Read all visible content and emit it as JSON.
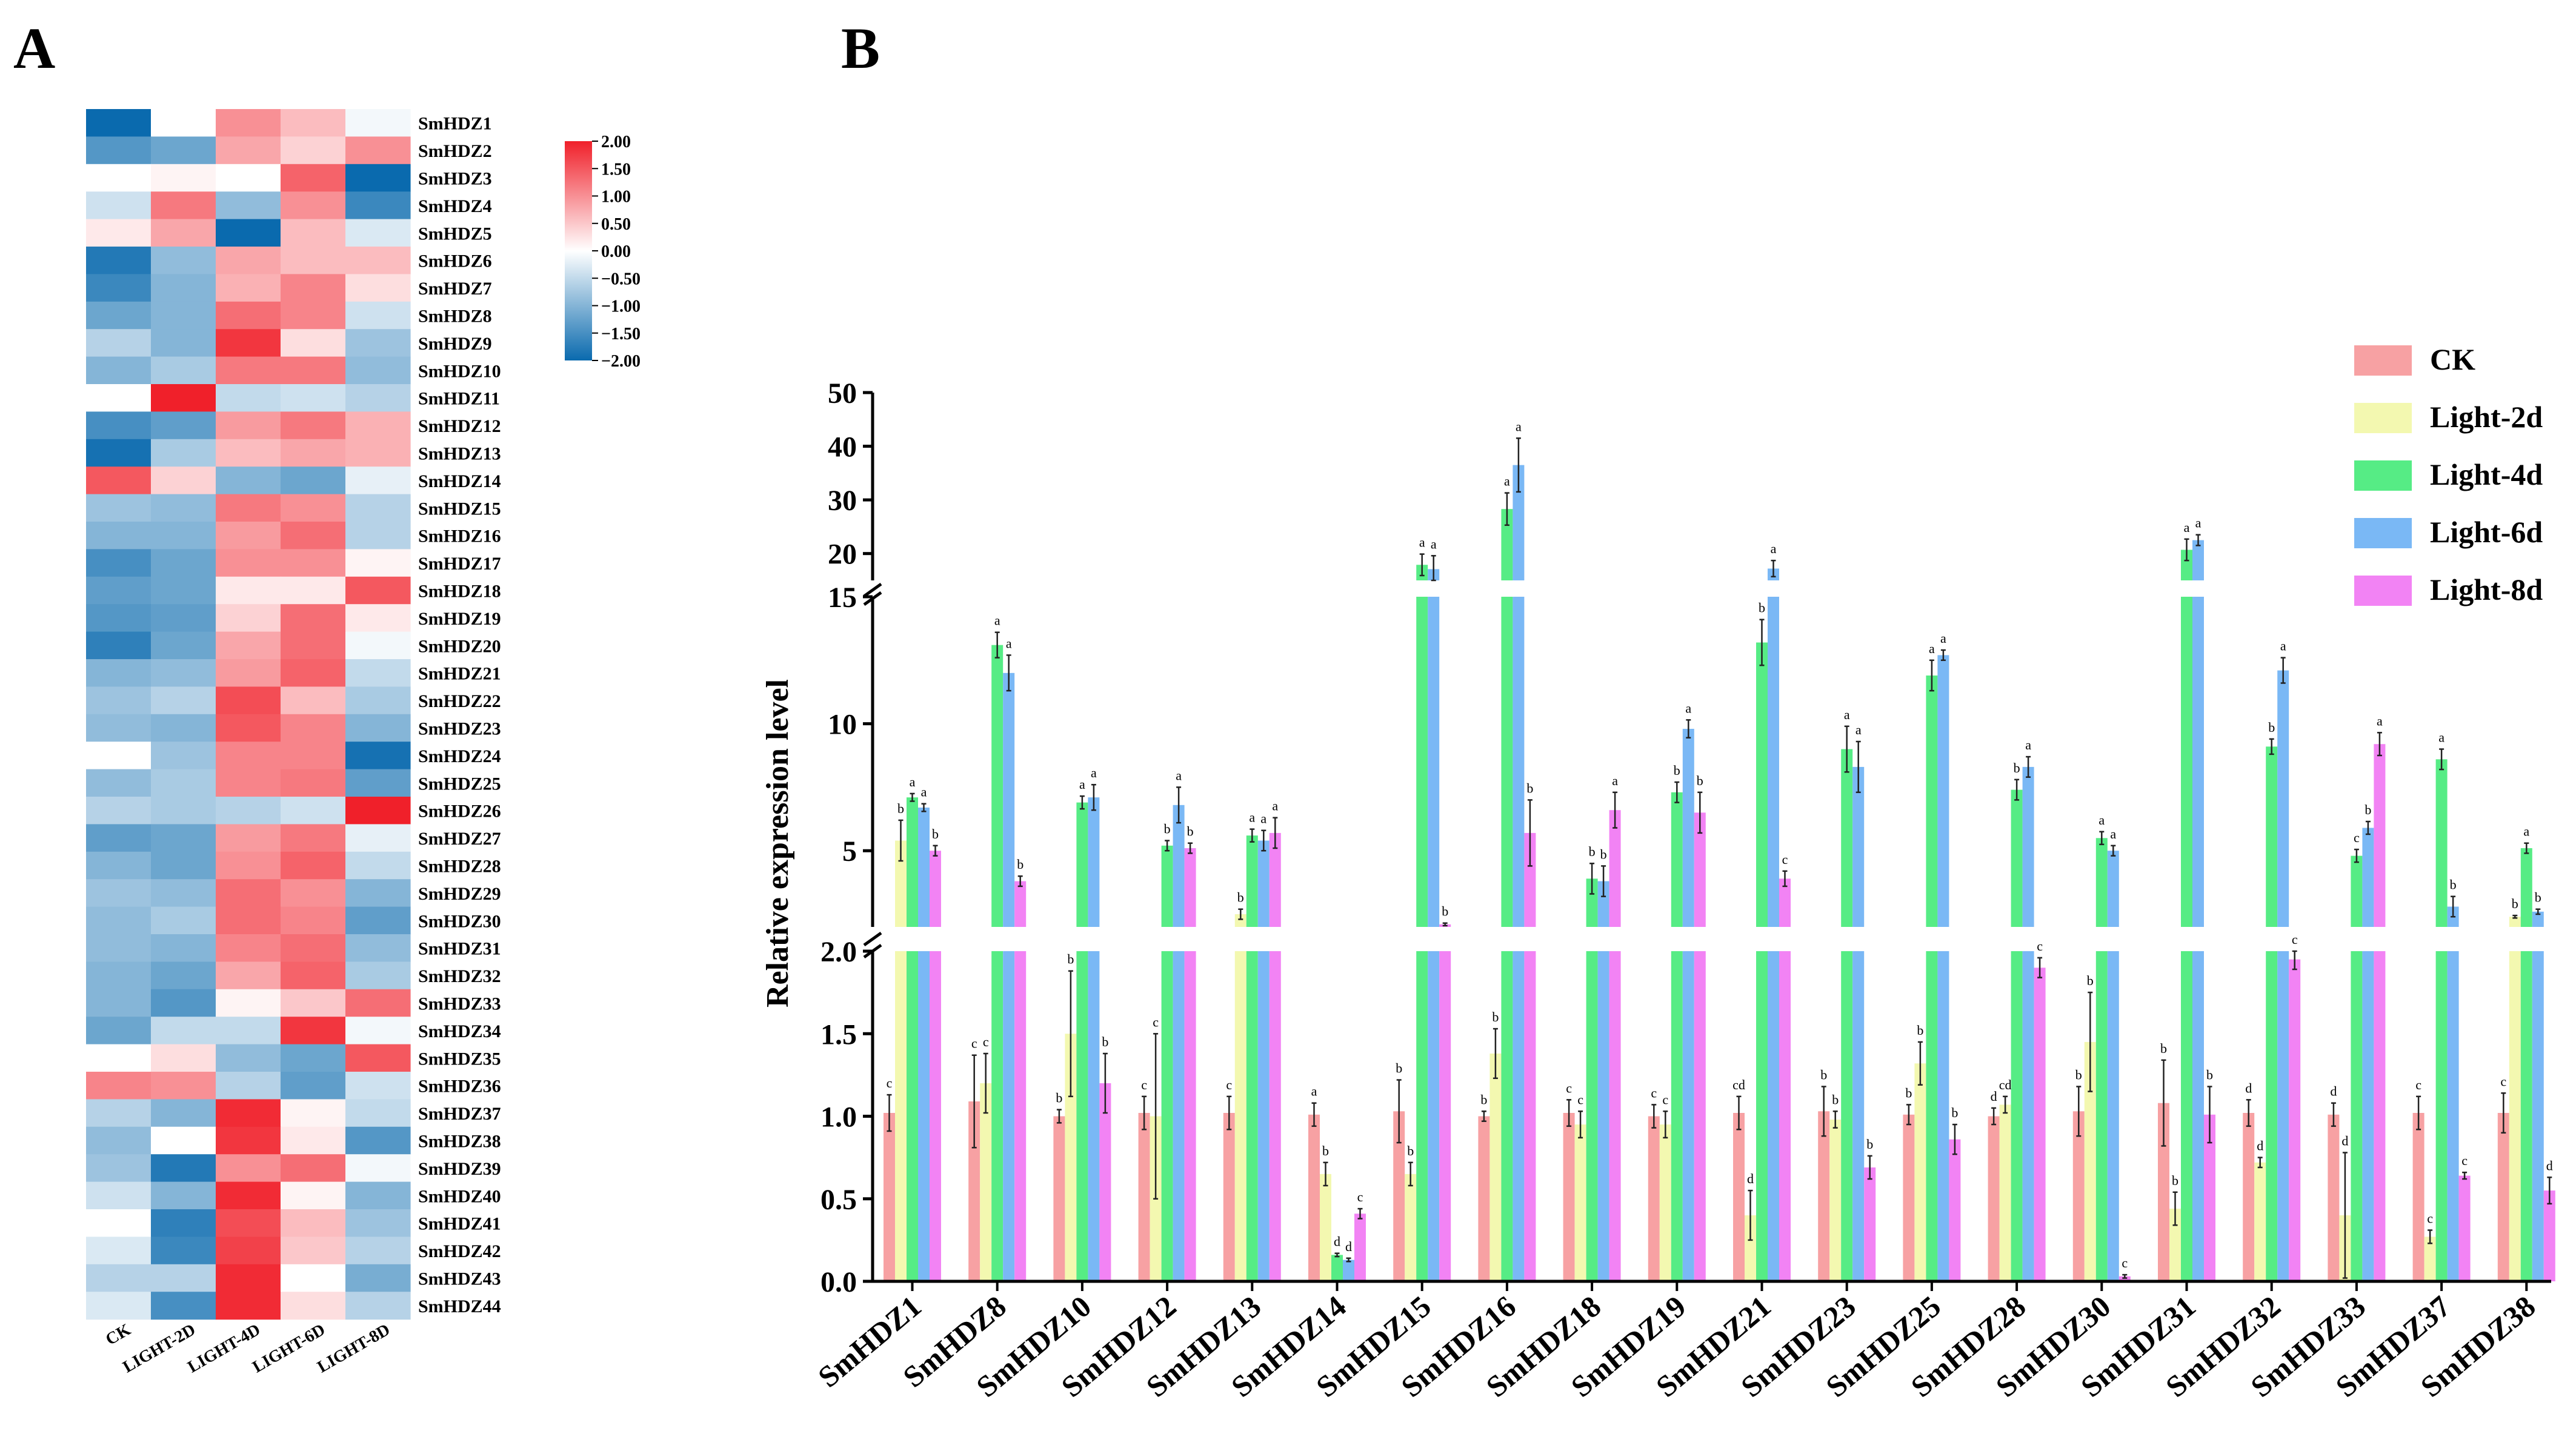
{
  "panels": {
    "a": "A",
    "b": "B"
  },
  "chart_data": [
    {
      "type": "heatmap",
      "panel": "A",
      "rows": [
        "SmHDZ1",
        "SmHDZ2",
        "SmHDZ3",
        "SmHDZ4",
        "SmHDZ5",
        "SmHDZ6",
        "SmHDZ7",
        "SmHDZ8",
        "SmHDZ9",
        "SmHDZ10",
        "SmHDZ11",
        "SmHDZ12",
        "SmHDZ13",
        "SmHDZ14",
        "SmHDZ15",
        "SmHDZ16",
        "SmHDZ17",
        "SmHDZ18",
        "SmHDZ19",
        "SmHDZ20",
        "SmHDZ21",
        "SmHDZ22",
        "SmHDZ23",
        "SmHDZ24",
        "SmHDZ25",
        "SmHDZ26",
        "SmHDZ27",
        "SmHDZ28",
        "SmHDZ29",
        "SmHDZ30",
        "SmHDZ31",
        "SmHDZ32",
        "SmHDZ33",
        "SmHDZ34",
        "SmHDZ35",
        "SmHDZ36",
        "SmHDZ37",
        "SmHDZ38",
        "SmHDZ39",
        "SmHDZ40",
        "SmHDZ41",
        "SmHDZ42",
        "SmHDZ43",
        "SmHDZ44"
      ],
      "columns": [
        "CK",
        "LIGHT-2D",
        "LIGHT-4D",
        "LIGHT-6D",
        "LIGHT-8D"
      ],
      "values": [
        [
          -2.0,
          0.0,
          1.0,
          0.6,
          -0.1
        ],
        [
          -1.4,
          -1.2,
          0.8,
          0.4,
          1.0
        ],
        [
          0.0,
          0.1,
          0.0,
          1.4,
          -2.0
        ],
        [
          -0.4,
          1.2,
          -0.9,
          1.0,
          -1.6
        ],
        [
          0.2,
          0.8,
          -2.0,
          0.6,
          -0.3
        ],
        [
          -1.8,
          -0.9,
          0.8,
          0.6,
          0.6
        ],
        [
          -1.6,
          -1.0,
          0.7,
          1.1,
          0.3
        ],
        [
          -1.2,
          -1.0,
          1.3,
          1.1,
          -0.4
        ],
        [
          -0.6,
          -1.0,
          1.8,
          0.3,
          -0.8
        ],
        [
          -1.0,
          -0.7,
          1.2,
          1.2,
          -0.9
        ],
        [
          0.0,
          2.0,
          -0.5,
          -0.4,
          -0.6
        ],
        [
          -1.5,
          -1.3,
          0.9,
          1.2,
          0.7
        ],
        [
          -1.9,
          -0.7,
          0.6,
          0.8,
          0.7
        ],
        [
          1.5,
          0.4,
          -1.0,
          -1.2,
          -0.2
        ],
        [
          -0.8,
          -0.9,
          1.2,
          1.0,
          -0.6
        ],
        [
          -1.0,
          -1.0,
          0.9,
          1.3,
          -0.6
        ],
        [
          -1.5,
          -1.2,
          1.0,
          1.0,
          0.1
        ],
        [
          -1.3,
          -1.2,
          0.2,
          0.2,
          1.5
        ],
        [
          -1.4,
          -1.3,
          0.4,
          1.3,
          0.2
        ],
        [
          -1.7,
          -1.2,
          0.8,
          1.3,
          -0.1
        ],
        [
          -1.0,
          -0.9,
          0.9,
          1.4,
          -0.5
        ],
        [
          -0.8,
          -0.6,
          1.6,
          0.6,
          -0.7
        ],
        [
          -0.9,
          -1.0,
          1.5,
          1.1,
          -1.0
        ],
        [
          0.0,
          -0.8,
          1.1,
          1.1,
          -1.9
        ],
        [
          -0.9,
          -0.7,
          1.1,
          1.2,
          -1.3
        ],
        [
          -0.6,
          -0.7,
          -0.6,
          -0.4,
          2.0
        ],
        [
          -1.3,
          -1.2,
          0.9,
          1.2,
          -0.2
        ],
        [
          -1.0,
          -1.2,
          1.0,
          1.4,
          -0.5
        ],
        [
          -0.8,
          -0.9,
          1.3,
          1.0,
          -1.0
        ],
        [
          -0.9,
          -0.7,
          1.3,
          1.1,
          -1.3
        ],
        [
          -0.9,
          -1.0,
          1.1,
          1.3,
          -0.9
        ],
        [
          -1.0,
          -1.2,
          0.8,
          1.4,
          -0.7
        ],
        [
          -1.0,
          -1.4,
          0.1,
          0.5,
          1.3
        ],
        [
          -1.2,
          -0.5,
          -0.5,
          1.8,
          -0.1
        ],
        [
          0.0,
          0.3,
          -0.9,
          -1.2,
          1.5
        ],
        [
          1.1,
          1.0,
          -0.6,
          -1.3,
          -0.4
        ],
        [
          -0.6,
          -1.0,
          1.9,
          0.1,
          -0.5
        ],
        [
          -0.9,
          0.0,
          1.8,
          0.2,
          -1.4
        ],
        [
          -0.8,
          -1.8,
          1.0,
          1.3,
          -0.1
        ],
        [
          -0.4,
          -1.0,
          1.9,
          0.1,
          -1.0
        ],
        [
          0.0,
          -1.7,
          1.6,
          0.6,
          -0.8
        ],
        [
          -0.3,
          -1.6,
          1.7,
          0.5,
          -0.6
        ],
        [
          -0.6,
          -0.6,
          1.9,
          0.0,
          -1.1
        ],
        [
          -0.3,
          -1.5,
          1.9,
          0.3,
          -0.6
        ]
      ],
      "legend": {
        "min": -2.0,
        "max": 2.0,
        "ticks": [
          "2.00",
          "1.50",
          "1.00",
          "0.50",
          "0.00",
          "−0.50",
          "−1.00",
          "−1.50",
          "−2.00"
        ],
        "colors": {
          "low": "#0a6aae",
          "mid": "#ffffff",
          "high": "#f0202a"
        }
      }
    },
    {
      "type": "bar",
      "panel": "B",
      "ylabel": "Relative expression level",
      "categories": [
        "SmHDZ1",
        "SmHDZ8",
        "SmHDZ10",
        "SmHDZ12",
        "SmHDZ13",
        "SmHDZ14",
        "SmHDZ15",
        "SmHDZ16",
        "SmHDZ18",
        "SmHDZ19",
        "SmHDZ21",
        "SmHDZ23",
        "SmHDZ25",
        "SmHDZ28",
        "SmHDZ30",
        "SmHDZ31",
        "SmHDZ32",
        "SmHDZ33",
        "SmHDZ37",
        "SmHDZ38"
      ],
      "axis_segments": [
        {
          "range": [
            0,
            2
          ],
          "ticks": [
            "0.0",
            "0.5",
            "1.0",
            "1.5",
            "2.0"
          ]
        },
        {
          "range": [
            2,
            15
          ],
          "ticks": [
            "5",
            "10",
            "15"
          ]
        },
        {
          "range": [
            15,
            50
          ],
          "ticks": [
            "20",
            "30",
            "40",
            "50"
          ]
        }
      ],
      "series": [
        {
          "name": "CK",
          "color": "#f7a1a3",
          "values": [
            1.02,
            1.09,
            1.0,
            1.02,
            1.02,
            1.01,
            1.03,
            1.0,
            1.02,
            1.0,
            1.02,
            1.03,
            1.01,
            1.0,
            1.03,
            1.08,
            1.02,
            1.01,
            1.02,
            1.02
          ],
          "errors": [
            0.11,
            0.28,
            0.04,
            0.1,
            0.1,
            0.07,
            0.19,
            0.03,
            0.08,
            0.07,
            0.1,
            0.15,
            0.06,
            0.05,
            0.15,
            0.26,
            0.08,
            0.07,
            0.1,
            0.12
          ],
          "labels": [
            "c",
            "c",
            "b",
            "c",
            "c",
            "a",
            "b",
            "b",
            "c",
            "c",
            "cd",
            "b",
            "b",
            "d",
            "b",
            "b",
            "d",
            "d",
            "c",
            "c"
          ]
        },
        {
          "name": "Light-2d",
          "color": "#f3f8b0",
          "values": [
            5.4,
            1.2,
            1.5,
            1.0,
            2.5,
            0.65,
            0.65,
            1.38,
            0.95,
            0.95,
            0.4,
            0.98,
            1.32,
            1.07,
            1.45,
            0.44,
            0.72,
            0.4,
            0.27,
            2.4
          ],
          "errors": [
            0.8,
            0.18,
            0.38,
            0.5,
            0.2,
            0.07,
            0.07,
            0.15,
            0.08,
            0.08,
            0.15,
            0.05,
            0.13,
            0.05,
            0.3,
            0.1,
            0.03,
            0.38,
            0.04,
            0.05
          ],
          "labels": [
            "b",
            "c",
            "b",
            "c",
            "b",
            "b",
            "b",
            "b",
            "c",
            "c",
            "d",
            "b",
            "b",
            "cd",
            "b",
            "b",
            "d",
            "d",
            "c",
            "b"
          ]
        },
        {
          "name": "Light-4d",
          "color": "#56ec85",
          "values": [
            7.1,
            13.1,
            6.9,
            5.2,
            5.6,
            0.16,
            17.9,
            28.3,
            3.9,
            7.3,
            13.2,
            9.0,
            11.9,
            7.4,
            5.5,
            20.7,
            9.1,
            4.8,
            8.6,
            5.1
          ],
          "errors": [
            0.15,
            0.5,
            0.25,
            0.2,
            0.25,
            0.01,
            2.0,
            3.0,
            0.6,
            0.4,
            0.9,
            0.9,
            0.6,
            0.4,
            0.25,
            2.0,
            0.3,
            0.25,
            0.4,
            0.2
          ],
          "labels": [
            "a",
            "a",
            "a",
            "b",
            "a",
            "d",
            "a",
            "a",
            "b",
            "b",
            "b",
            "a",
            "a",
            "b",
            "a",
            "a",
            "b",
            "c",
            "a",
            "a"
          ]
        },
        {
          "name": "Light-6d",
          "color": "#7ab8f5",
          "values": [
            6.7,
            12.0,
            7.1,
            6.8,
            5.4,
            0.13,
            17.1,
            36.5,
            3.8,
            9.8,
            17.2,
            8.3,
            12.7,
            8.3,
            5.0,
            22.5,
            12.1,
            5.9,
            2.8,
            2.6
          ],
          "errors": [
            0.15,
            0.7,
            0.5,
            0.7,
            0.4,
            0.01,
            2.5,
            5.0,
            0.6,
            0.35,
            1.5,
            1.0,
            0.2,
            0.4,
            0.2,
            1.0,
            0.5,
            0.25,
            0.4,
            0.1
          ],
          "labels": [
            "a",
            "a",
            "a",
            "a",
            "a",
            "d",
            "a",
            "a",
            "b",
            "a",
            "a",
            "a",
            "a",
            "a",
            "a",
            "a",
            "a",
            "b",
            "b",
            "b"
          ]
        },
        {
          "name": "Light-8d",
          "color": "#f283f4",
          "values": [
            5.0,
            3.8,
            1.2,
            5.1,
            5.7,
            0.41,
            2.1,
            5.7,
            6.6,
            6.5,
            3.9,
            0.69,
            0.86,
            1.9,
            0.03,
            1.01,
            1.95,
            9.2,
            0.64,
            0.55
          ],
          "errors": [
            0.2,
            0.2,
            0.18,
            0.2,
            0.6,
            0.03,
            0.05,
            1.3,
            0.7,
            0.8,
            0.3,
            0.07,
            0.09,
            0.06,
            0.01,
            0.17,
            0.06,
            0.45,
            0.02,
            0.08
          ],
          "labels": [
            "b",
            "b",
            "b",
            "b",
            "a",
            "c",
            "b",
            "b",
            "a",
            "b",
            "c",
            "b",
            "b",
            "c",
            "c",
            "b",
            "c",
            "a",
            "c",
            "d"
          ]
        }
      ],
      "legend": [
        "CK",
        "Light-2d",
        "Light-4d",
        "Light-6d",
        "Light-8d"
      ]
    }
  ]
}
